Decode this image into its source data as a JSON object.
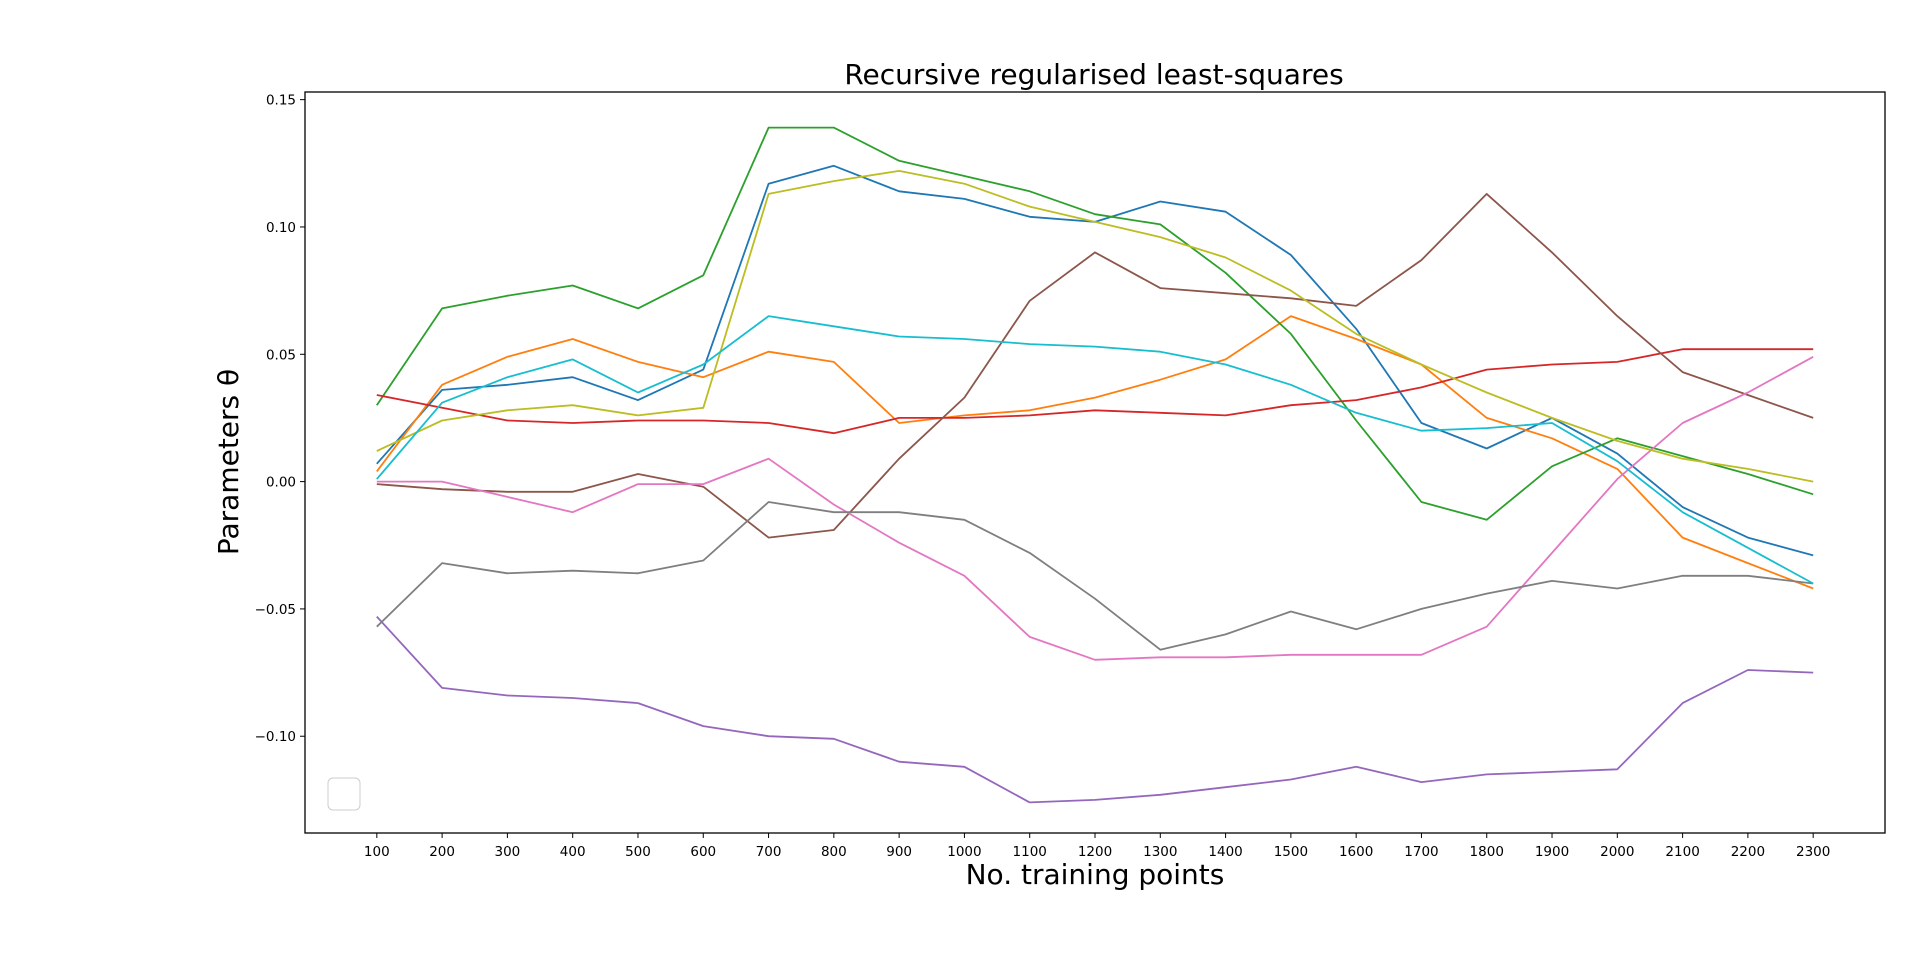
{
  "chart_data": {
    "type": "line",
    "title": "Recursive regularised least-squares",
    "xlabel": "No. training points",
    "ylabel": "Parameters θ",
    "x": [
      100,
      200,
      300,
      400,
      500,
      600,
      700,
      800,
      900,
      1000,
      1100,
      1200,
      1300,
      1400,
      1500,
      1600,
      1700,
      1800,
      1900,
      2000,
      2100,
      2200,
      2300
    ],
    "xticks": [
      "100",
      "200",
      "300",
      "400",
      "500",
      "600",
      "700",
      "800",
      "900",
      "1000",
      "1100",
      "1200",
      "1300",
      "1400",
      "1500",
      "1600",
      "1700",
      "1800",
      "1900",
      "2000",
      "2100",
      "2200",
      "2300"
    ],
    "xlim": [
      -10,
      2410
    ],
    "ylim": [
      -0.138,
      0.153
    ],
    "yticks": [
      -0.1,
      -0.05,
      0.0,
      0.05,
      0.1,
      0.15
    ],
    "ytick_labels": [
      "−0.10",
      "−0.05",
      "0.00",
      "0.05",
      "0.10",
      "0.15"
    ],
    "grid": false,
    "legend": "lower-left (empty)",
    "series": [
      {
        "color": "#1f77b4",
        "values": [
          0.007,
          0.036,
          0.038,
          0.041,
          0.032,
          0.044,
          0.117,
          0.124,
          0.114,
          0.111,
          0.104,
          0.102,
          0.11,
          0.106,
          0.089,
          0.06,
          0.023,
          0.013,
          0.025,
          0.011,
          -0.01,
          -0.022,
          -0.029
        ]
      },
      {
        "color": "#ff7f0e",
        "values": [
          0.004,
          0.038,
          0.049,
          0.056,
          0.047,
          0.041,
          0.051,
          0.047,
          0.023,
          0.026,
          0.028,
          0.033,
          0.04,
          0.048,
          0.065,
          0.056,
          0.046,
          0.025,
          0.017,
          0.005,
          -0.022,
          -0.032,
          -0.042
        ]
      },
      {
        "color": "#2ca02c",
        "values": [
          0.03,
          0.068,
          0.073,
          0.077,
          0.068,
          0.081,
          0.139,
          0.139,
          0.126,
          0.12,
          0.114,
          0.105,
          0.101,
          0.082,
          0.058,
          0.024,
          -0.008,
          -0.015,
          0.006,
          0.017,
          0.01,
          0.003,
          -0.005
        ]
      },
      {
        "color": "#d62728",
        "values": [
          0.034,
          0.029,
          0.024,
          0.023,
          0.024,
          0.024,
          0.023,
          0.019,
          0.025,
          0.025,
          0.026,
          0.028,
          0.027,
          0.026,
          0.03,
          0.032,
          0.037,
          0.044,
          0.046,
          0.047,
          0.052,
          0.052,
          0.052
        ]
      },
      {
        "color": "#9467bd",
        "values": [
          -0.053,
          -0.081,
          -0.084,
          -0.085,
          -0.087,
          -0.096,
          -0.1,
          -0.101,
          -0.11,
          -0.112,
          -0.126,
          -0.125,
          -0.123,
          -0.12,
          -0.117,
          -0.112,
          -0.118,
          -0.115,
          -0.114,
          -0.113,
          -0.087,
          -0.074,
          -0.075
        ]
      },
      {
        "color": "#8c564b",
        "values": [
          -0.001,
          -0.003,
          -0.004,
          -0.004,
          0.003,
          -0.002,
          -0.022,
          -0.019,
          0.009,
          0.033,
          0.071,
          0.09,
          0.076,
          0.074,
          0.072,
          0.069,
          0.087,
          0.113,
          0.09,
          0.065,
          0.043,
          0.034,
          0.025
        ]
      },
      {
        "color": "#e377c2",
        "values": [
          0.0,
          0.0,
          -0.006,
          -0.012,
          -0.001,
          -0.001,
          0.009,
          -0.009,
          -0.024,
          -0.037,
          -0.061,
          -0.07,
          -0.069,
          -0.069,
          -0.068,
          -0.068,
          -0.068,
          -0.057,
          -0.028,
          0.001,
          0.023,
          0.035,
          0.049
        ]
      },
      {
        "color": "#7f7f7f",
        "values": [
          -0.057,
          -0.032,
          -0.036,
          -0.035,
          -0.036,
          -0.031,
          -0.008,
          -0.012,
          -0.012,
          -0.015,
          -0.028,
          -0.046,
          -0.066,
          -0.06,
          -0.051,
          -0.058,
          -0.05,
          -0.044,
          -0.039,
          -0.042,
          -0.037,
          -0.037,
          -0.04
        ]
      },
      {
        "color": "#bcbd22",
        "values": [
          0.012,
          0.024,
          0.028,
          0.03,
          0.026,
          0.029,
          0.113,
          0.118,
          0.122,
          0.117,
          0.108,
          0.102,
          0.096,
          0.088,
          0.075,
          0.058,
          0.046,
          0.035,
          0.025,
          0.016,
          0.009,
          0.005,
          0.0
        ]
      },
      {
        "color": "#17becf",
        "values": [
          0.001,
          0.031,
          0.041,
          0.048,
          0.035,
          0.046,
          0.065,
          0.061,
          0.057,
          0.056,
          0.054,
          0.053,
          0.051,
          0.046,
          0.038,
          0.027,
          0.02,
          0.021,
          0.023,
          0.008,
          -0.012,
          -0.026,
          -0.04
        ]
      }
    ]
  }
}
